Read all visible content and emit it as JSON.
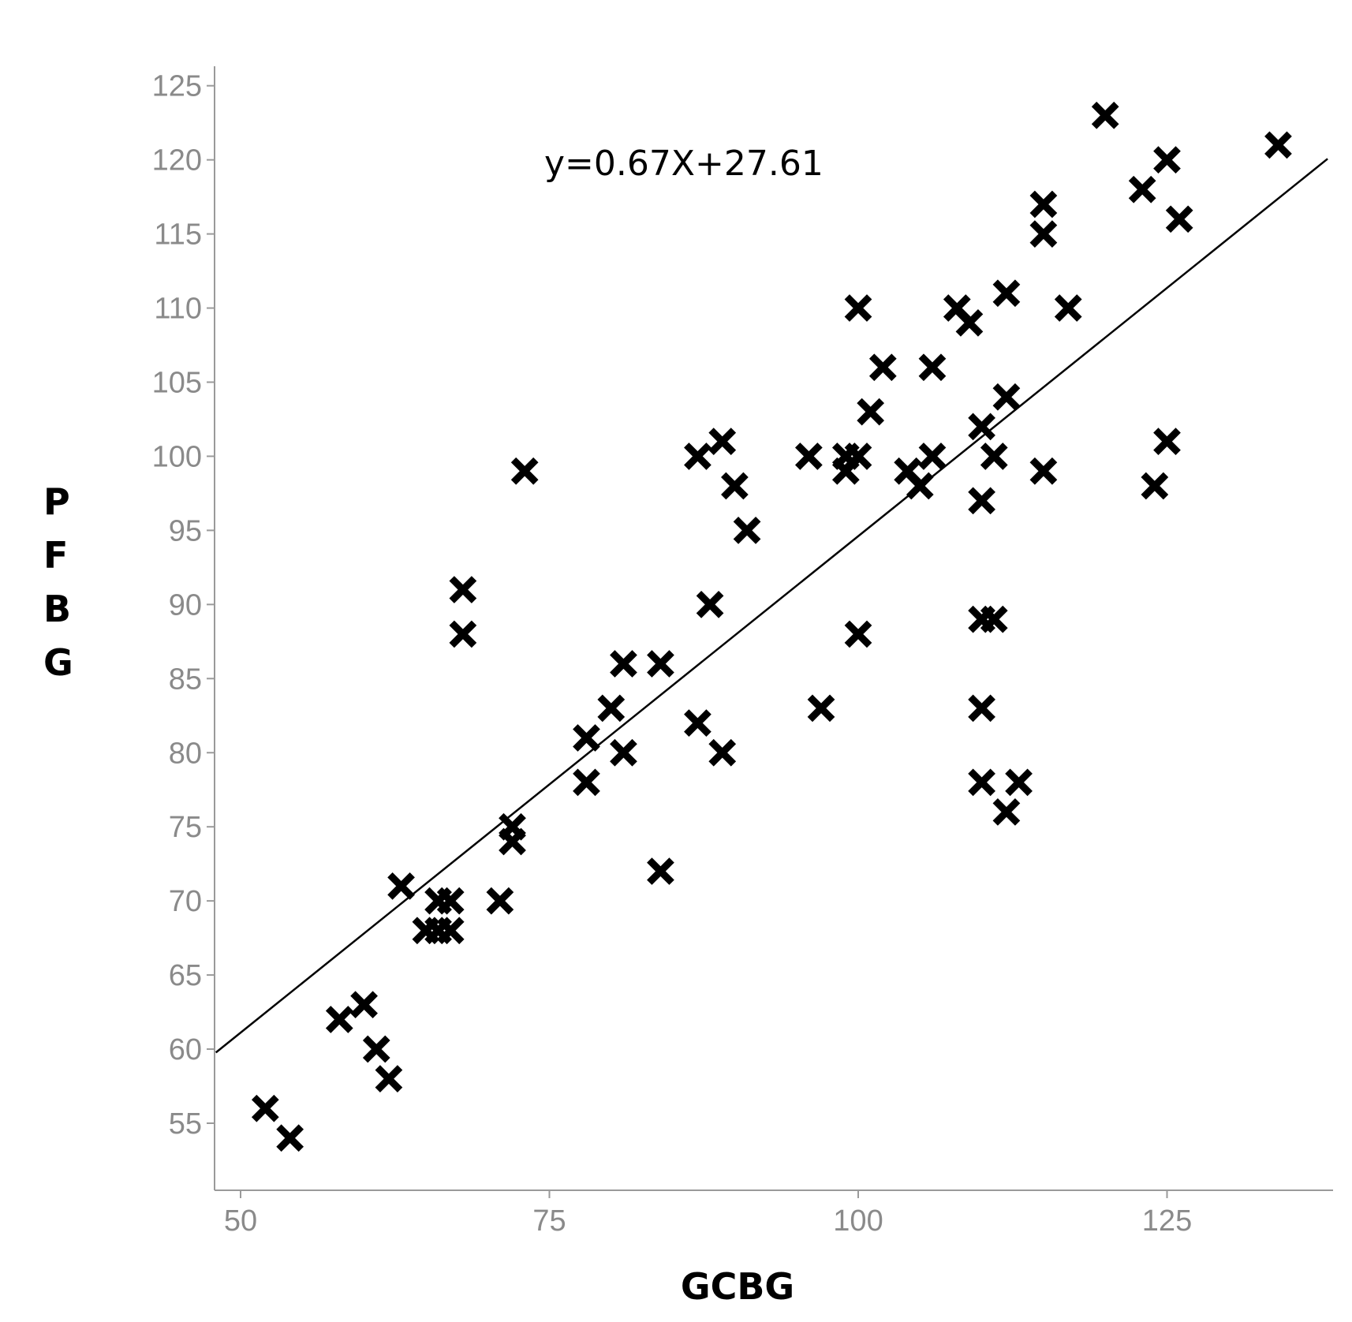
{
  "chart_data": {
    "type": "scatter",
    "title": "",
    "xlabel": "GCBG",
    "ylabel": "PFBG",
    "annotation": "y=0.67X+27.61",
    "xlim": [
      47.8,
      138
    ],
    "ylim": [
      50.5,
      126.5
    ],
    "xticks": [
      50,
      75,
      100,
      125
    ],
    "yticks": [
      55,
      60,
      65,
      70,
      75,
      80,
      85,
      90,
      95,
      100,
      105,
      110,
      115,
      120,
      125
    ],
    "grid": false,
    "marker": "x",
    "colors": {
      "points": "#000000",
      "line": "#000000",
      "axis": "#9a9a9a",
      "tick_text": "#8a8a8a"
    },
    "trendline": {
      "slope": 0.67,
      "intercept": 27.61,
      "x_range": [
        48,
        138
      ]
    },
    "points": [
      {
        "x": 52,
        "y": 56
      },
      {
        "x": 54,
        "y": 54
      },
      {
        "x": 58,
        "y": 62
      },
      {
        "x": 60,
        "y": 63
      },
      {
        "x": 61,
        "y": 60
      },
      {
        "x": 62,
        "y": 58
      },
      {
        "x": 63,
        "y": 71
      },
      {
        "x": 65,
        "y": 68
      },
      {
        "x": 66,
        "y": 70
      },
      {
        "x": 66,
        "y": 68
      },
      {
        "x": 67,
        "y": 70
      },
      {
        "x": 67,
        "y": 68
      },
      {
        "x": 68,
        "y": 91
      },
      {
        "x": 68,
        "y": 88
      },
      {
        "x": 71,
        "y": 70
      },
      {
        "x": 72,
        "y": 75
      },
      {
        "x": 72,
        "y": 74
      },
      {
        "x": 73,
        "y": 99
      },
      {
        "x": 78,
        "y": 81
      },
      {
        "x": 78,
        "y": 78
      },
      {
        "x": 80,
        "y": 83
      },
      {
        "x": 81,
        "y": 86
      },
      {
        "x": 81,
        "y": 80
      },
      {
        "x": 84,
        "y": 86
      },
      {
        "x": 84,
        "y": 72
      },
      {
        "x": 87,
        "y": 100
      },
      {
        "x": 87,
        "y": 82
      },
      {
        "x": 88,
        "y": 90
      },
      {
        "x": 89,
        "y": 101
      },
      {
        "x": 89,
        "y": 80
      },
      {
        "x": 90,
        "y": 98
      },
      {
        "x": 91,
        "y": 95
      },
      {
        "x": 96,
        "y": 100
      },
      {
        "x": 97,
        "y": 83
      },
      {
        "x": 99,
        "y": 100
      },
      {
        "x": 99,
        "y": 99
      },
      {
        "x": 100,
        "y": 110
      },
      {
        "x": 100,
        "y": 100
      },
      {
        "x": 100,
        "y": 88
      },
      {
        "x": 101,
        "y": 103
      },
      {
        "x": 102,
        "y": 106
      },
      {
        "x": 104,
        "y": 99
      },
      {
        "x": 105,
        "y": 98
      },
      {
        "x": 106,
        "y": 106
      },
      {
        "x": 106,
        "y": 100
      },
      {
        "x": 108,
        "y": 110
      },
      {
        "x": 109,
        "y": 109
      },
      {
        "x": 110,
        "y": 102
      },
      {
        "x": 110,
        "y": 97
      },
      {
        "x": 110,
        "y": 89
      },
      {
        "x": 110,
        "y": 83
      },
      {
        "x": 110,
        "y": 78
      },
      {
        "x": 111,
        "y": 100
      },
      {
        "x": 111,
        "y": 89
      },
      {
        "x": 112,
        "y": 111
      },
      {
        "x": 112,
        "y": 104
      },
      {
        "x": 112,
        "y": 76
      },
      {
        "x": 113,
        "y": 78
      },
      {
        "x": 115,
        "y": 117
      },
      {
        "x": 115,
        "y": 115
      },
      {
        "x": 115,
        "y": 99
      },
      {
        "x": 117,
        "y": 110
      },
      {
        "x": 120,
        "y": 123
      },
      {
        "x": 123,
        "y": 118
      },
      {
        "x": 124,
        "y": 98
      },
      {
        "x": 125,
        "y": 120
      },
      {
        "x": 125,
        "y": 101
      },
      {
        "x": 126,
        "y": 116
      },
      {
        "x": 134,
        "y": 121
      }
    ]
  }
}
